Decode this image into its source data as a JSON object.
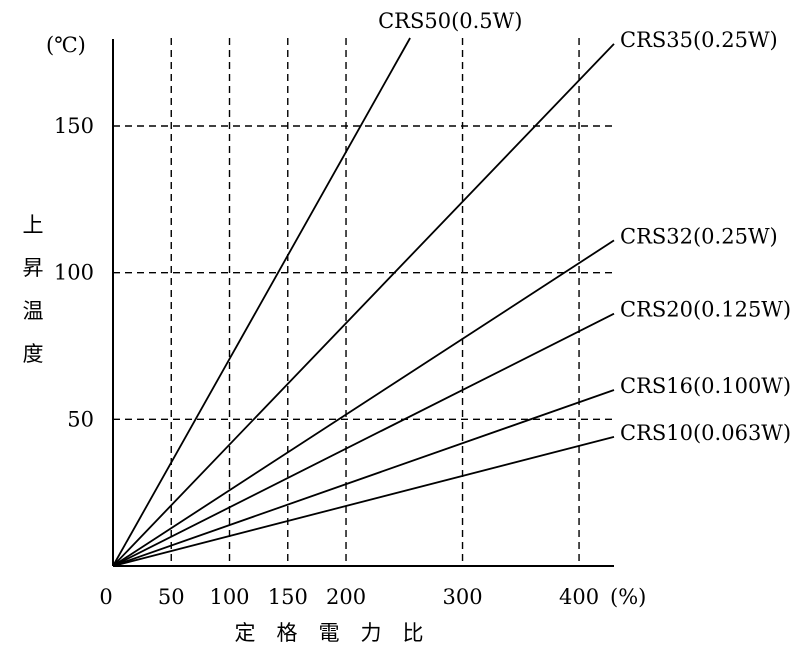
{
  "chart_data": {
    "type": "line",
    "x_unit": "(%)",
    "y_unit": "(℃)",
    "xlabel_chars": [
      "定",
      "格",
      "電",
      "力",
      "比"
    ],
    "ylabel_chars": [
      "上",
      "昇",
      "温",
      "度"
    ],
    "xlim": [
      0,
      430
    ],
    "ylim": [
      0,
      180
    ],
    "x_ticks": [
      {
        "value": 0,
        "label": "0"
      },
      {
        "value": 50,
        "label": "50"
      },
      {
        "value": 100,
        "label": "100"
      },
      {
        "value": 150,
        "label": "150"
      },
      {
        "value": 200,
        "label": "200"
      },
      {
        "value": 300,
        "label": "300"
      },
      {
        "value": 400,
        "label": "400"
      }
    ],
    "y_ticks": [
      {
        "value": 50,
        "label": "50"
      },
      {
        "value": 100,
        "label": "100"
      },
      {
        "value": 150,
        "label": "150"
      }
    ],
    "x_grid": [
      50,
      100,
      150,
      200,
      300,
      400
    ],
    "y_grid": [
      50,
      100,
      150
    ],
    "grid": true,
    "series": [
      {
        "name": "CRS50(0.5W)",
        "points": [
          [
            0,
            0
          ],
          [
            255,
            180
          ]
        ]
      },
      {
        "name": "CRS35(0.25W)",
        "points": [
          [
            0,
            0
          ],
          [
            430,
            178
          ]
        ]
      },
      {
        "name": "CRS32(0.25W)",
        "points": [
          [
            0,
            0
          ],
          [
            430,
            111
          ]
        ]
      },
      {
        "name": "CRS20(0.125W)",
        "points": [
          [
            0,
            0
          ],
          [
            430,
            86
          ]
        ]
      },
      {
        "name": "CRS16(0.100W)",
        "points": [
          [
            0,
            0
          ],
          [
            430,
            60
          ]
        ]
      },
      {
        "name": "CRS10(0.063W)",
        "points": [
          [
            0,
            0
          ],
          [
            430,
            44
          ]
        ]
      }
    ]
  }
}
